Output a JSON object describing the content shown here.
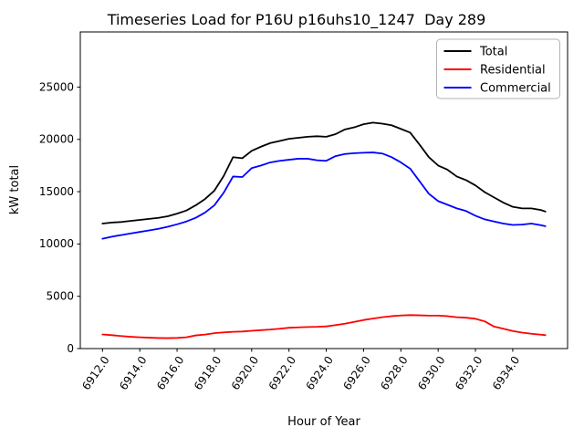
{
  "figure": {
    "title": "Timeseries Load for P16U p16uhs10_1247  Day 289",
    "xlabel": "Hour of Year",
    "ylabel": "kW total"
  },
  "chart_data": {
    "type": "line",
    "title": "Timeseries Load for P16U p16uhs10_1247  Day 289",
    "xlabel": "Hour of Year",
    "ylabel": "kW total",
    "grid": false,
    "legend_position": "upper right",
    "xlim": [
      6910.81,
      6936.94
    ],
    "ylim": [
      0,
      30270
    ],
    "xticks": [
      6912,
      6914,
      6916,
      6918,
      6920,
      6922,
      6924,
      6926,
      6928,
      6930,
      6932,
      6934
    ],
    "xtick_labels": [
      "6912.0",
      "6914.0",
      "6916.0",
      "6918.0",
      "6920.0",
      "6922.0",
      "6924.0",
      "6926.0",
      "6928.0",
      "6930.0",
      "6932.0",
      "6934.0"
    ],
    "yticks": [
      0,
      5000,
      10000,
      15000,
      20000,
      25000
    ],
    "ytick_labels": [
      "0",
      "5000",
      "10000",
      "15000",
      "20000",
      "25000"
    ],
    "x": [
      6912.0,
      6912.5,
      6913.0,
      6913.5,
      6914.0,
      6914.5,
      6915.0,
      6915.5,
      6916.0,
      6916.5,
      6917.0,
      6917.5,
      6918.0,
      6918.5,
      6919.0,
      6919.5,
      6920.0,
      6920.5,
      6921.0,
      6921.5,
      6922.0,
      6922.5,
      6923.0,
      6923.5,
      6924.0,
      6924.5,
      6925.0,
      6925.5,
      6926.0,
      6926.5,
      6927.0,
      6927.5,
      6928.0,
      6928.5,
      6929.0,
      6929.5,
      6930.0,
      6930.5,
      6931.0,
      6931.5,
      6932.0,
      6932.5,
      6933.0,
      6933.5,
      6934.0,
      6934.5,
      6935.0,
      6935.5,
      6935.75
    ],
    "series": [
      {
        "name": "Total",
        "color": "#000000",
        "values": [
          11950,
          12050,
          12100,
          12200,
          12300,
          12400,
          12500,
          12650,
          12900,
          13200,
          13700,
          14300,
          15100,
          16500,
          18300,
          18200,
          18900,
          19300,
          19650,
          19850,
          20050,
          20150,
          20250,
          20300,
          20250,
          20500,
          20950,
          21150,
          21450,
          21600,
          21500,
          21350,
          21000,
          20650,
          19500,
          18300,
          17500,
          17100,
          16450,
          16100,
          15600,
          14950,
          14450,
          13950,
          13550,
          13400,
          13400,
          13250,
          13100
        ]
      },
      {
        "name": "Residential",
        "color": "#ff0000",
        "values": [
          1350,
          1280,
          1200,
          1130,
          1080,
          1040,
          1010,
          1000,
          1020,
          1080,
          1260,
          1340,
          1470,
          1550,
          1600,
          1630,
          1700,
          1760,
          1820,
          1900,
          1990,
          2030,
          2060,
          2080,
          2120,
          2250,
          2380,
          2550,
          2730,
          2870,
          3000,
          3100,
          3160,
          3200,
          3180,
          3150,
          3150,
          3100,
          3000,
          2950,
          2850,
          2600,
          2100,
          1900,
          1680,
          1530,
          1420,
          1330,
          1280
        ]
      },
      {
        "name": "Commercial",
        "color": "#0000ff",
        "values": [
          10500,
          10700,
          10850,
          11000,
          11150,
          11300,
          11450,
          11650,
          11880,
          12150,
          12500,
          13000,
          13700,
          14900,
          16450,
          16400,
          17250,
          17500,
          17800,
          17950,
          18050,
          18150,
          18150,
          18000,
          17950,
          18400,
          18600,
          18680,
          18720,
          18750,
          18650,
          18300,
          17800,
          17200,
          16000,
          14800,
          14100,
          13750,
          13400,
          13150,
          12700,
          12350,
          12150,
          11950,
          11820,
          11850,
          11950,
          11800,
          11700
        ]
      }
    ]
  }
}
